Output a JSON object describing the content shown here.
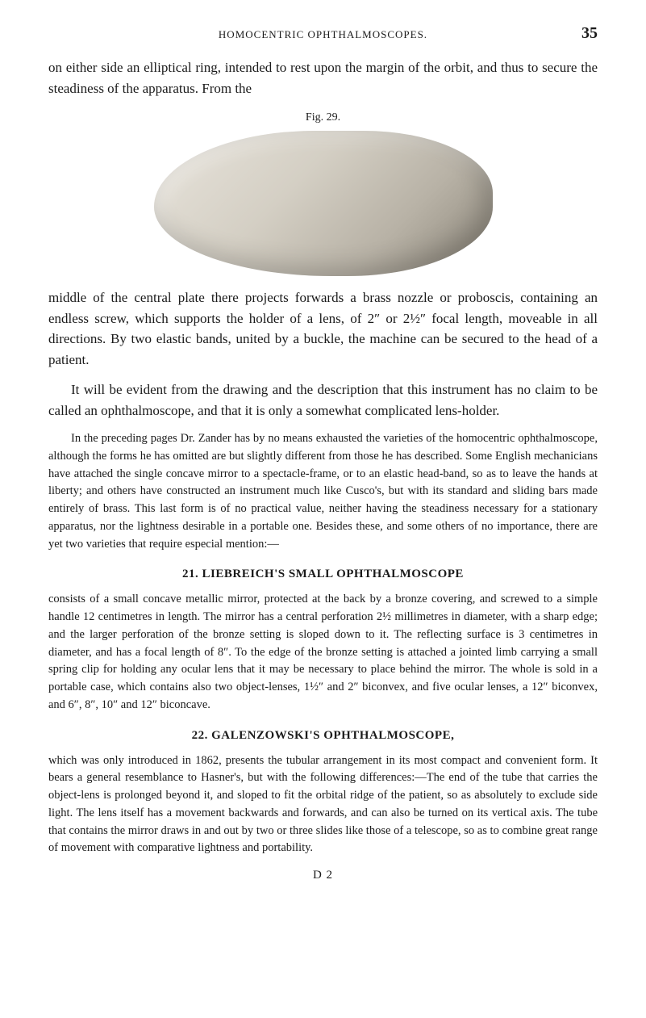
{
  "page": {
    "running_header": "HOMOCENTRIC OPHTHALMOSCOPES.",
    "page_number": "35",
    "fig_caption": "Fig. 29.",
    "signature": "D 2"
  },
  "paragraphs": {
    "intro": "on either side an elliptical ring, intended to rest upon the margin of the orbit, and thus to secure the steadiness of the apparatus. From the",
    "middle": "middle of the central plate there projects forwards a brass nozzle or proboscis, containing an endless screw, which supports the holder of a lens, of 2″ or 2½″ focal length, moveable in all directions. By two elastic bands, united by a buckle, the machine can be secured to the head of a patient.",
    "evident": "It will be evident from the drawing and the description that this instrument has no claim to be called an ophthalmoscope, and that it is only a somewhat complicated lens-holder.",
    "preceding": "In the preceding pages Dr. Zander has by no means exhausted the varieties of the homocentric ophthalmoscope, although the forms he has omitted are but slightly different from those he has described. Some English mechanicians have attached the single concave mirror to a spectacle-frame, or to an elastic head-band, so as to leave the hands at liberty; and others have constructed an instrument much like Cusco's, but with its standard and sliding bars made entirely of brass. This last form is of no practical value, neither having the steadiness necessary for a stationary apparatus, nor the lightness desirable in a portable one. Besides these, and some others of no importance, there are yet two varieties that require especial mention:—"
  },
  "section21": {
    "heading": "21. LIEBREICH'S SMALL OPHTHALMOSCOPE",
    "text": "consists of a small concave metallic mirror, protected at the back by a bronze covering, and screwed to a simple handle 12 centimetres in length. The mirror has a central perforation 2½ millimetres in diameter, with a sharp edge; and the larger perforation of the bronze setting is sloped down to it. The reflecting surface is 3 centimetres in diameter, and has a focal length of 8″. To the edge of the bronze setting is attached a jointed limb carrying a small spring clip for holding any ocular lens that it may be necessary to place behind the mirror. The whole is sold in a portable case, which contains also two object-lenses, 1½″ and 2″ biconvex, and five ocular lenses, a 12″ biconvex, and 6″, 8″, 10″ and 12″ biconcave."
  },
  "section22": {
    "heading": "22. GALENZOWSKI'S OPHTHALMOSCOPE,",
    "text": "which was only introduced in 1862, presents the tubular arrangement in its most compact and convenient form. It bears a general resemblance to Hasner's, but with the following differences:—The end of the tube that carries the object-lens is prolonged beyond it, and sloped to fit the orbital ridge of the patient, so as absolutely to exclude side light. The lens itself has a movement backwards and forwards, and can also be turned on its vertical axis. The tube that contains the mirror draws in and out by two or three slides like those of a telescope, so as to combine great range of movement with comparative lightness and portability."
  }
}
